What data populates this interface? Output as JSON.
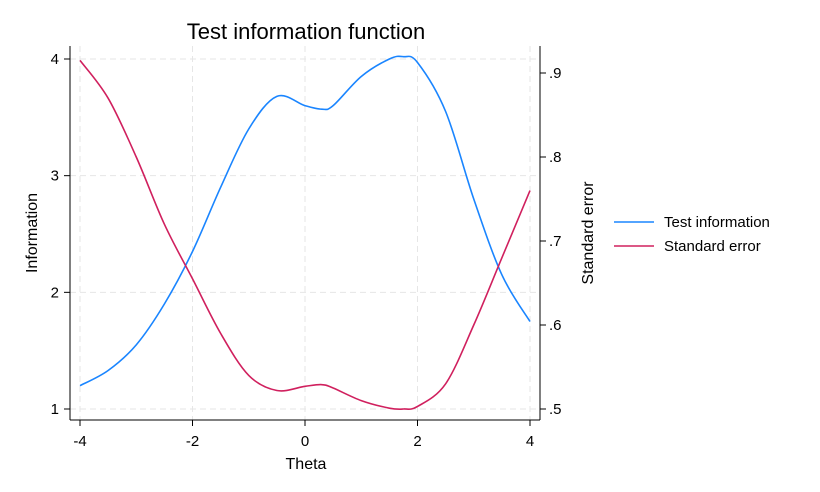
{
  "chart_data": {
    "type": "line",
    "title": "Test information function",
    "xlabel": "Theta",
    "ylabel": "Information",
    "y2label": "Standard error",
    "xlim": [
      -4,
      4
    ],
    "ylim": [
      1,
      4
    ],
    "y2lim": [
      0.5,
      0.9
    ],
    "xticks": [
      -4,
      -2,
      0,
      2,
      4
    ],
    "xtick_labels": [
      "-4",
      "-2",
      "0",
      "2",
      "4"
    ],
    "yticks": [
      1,
      2,
      3,
      4
    ],
    "ytick_labels": [
      "1",
      "2",
      "3",
      "4"
    ],
    "y2ticks": [
      0.5,
      0.6,
      0.7,
      0.8,
      0.9
    ],
    "y2tick_labels": [
      ".5",
      ".6",
      ".7",
      ".8",
      ".9"
    ],
    "grid": true,
    "legend_position": "right",
    "series": [
      {
        "name": "Test information",
        "axis": "left",
        "color": "#1a85ff",
        "x": [
          -4,
          -3.5,
          -3,
          -2.5,
          -2,
          -1.5,
          -1,
          -0.5,
          0,
          0.3,
          0.5,
          1,
          1.5,
          1.75,
          2,
          2.5,
          3,
          3.5,
          4
        ],
        "y": [
          1.2,
          1.33,
          1.55,
          1.9,
          2.35,
          2.9,
          3.4,
          3.68,
          3.6,
          3.57,
          3.6,
          3.85,
          4.0,
          4.02,
          3.97,
          3.55,
          2.8,
          2.15,
          1.75
        ]
      },
      {
        "name": "Standard error",
        "axis": "right",
        "color": "#d0205e",
        "x": [
          -4,
          -3.5,
          -3,
          -2.5,
          -2,
          -1.5,
          -1,
          -0.5,
          0,
          0.3,
          0.5,
          1,
          1.5,
          1.75,
          2,
          2.5,
          3,
          3.5,
          4
        ],
        "y": [
          0.915,
          0.87,
          0.8,
          0.72,
          0.655,
          0.59,
          0.54,
          0.522,
          0.527,
          0.529,
          0.525,
          0.51,
          0.501,
          0.5,
          0.503,
          0.53,
          0.6,
          0.68,
          0.76
        ]
      }
    ]
  }
}
